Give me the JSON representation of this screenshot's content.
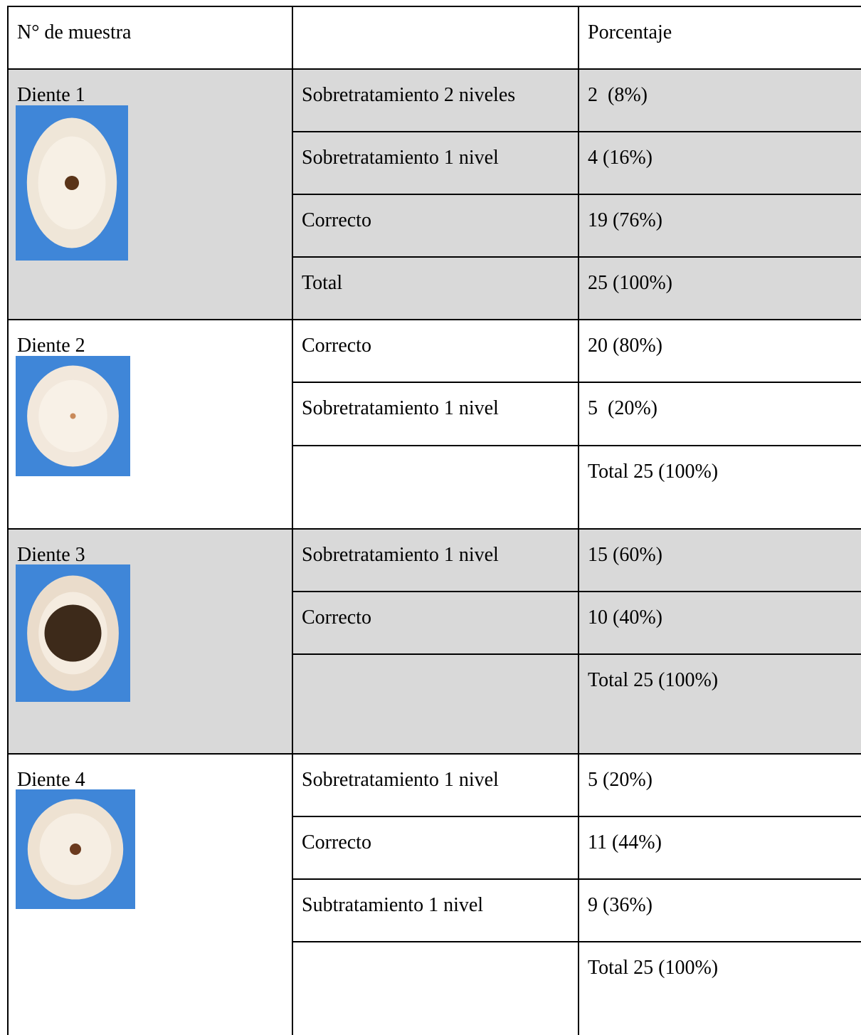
{
  "table": {
    "header": {
      "sample": "N° de muestra",
      "percent": "Porcentaje"
    },
    "groups": [
      {
        "label": "Diente 1",
        "rows": [
          {
            "category": "Sobretratamiento 2 niveles",
            "value": "2  (8%)"
          },
          {
            "category": "Sobretratamiento 1 nivel",
            "value": "4 (16%)"
          },
          {
            "category": "Correcto",
            "value": "19 (76%)"
          },
          {
            "category": "Total",
            "value": "25 (100%)"
          }
        ]
      },
      {
        "label": "Diente 2",
        "rows": [
          {
            "category": "Correcto",
            "value": "20 (80%)"
          },
          {
            "category": "Sobretratamiento 1 nivel",
            "value": "5  (20%)"
          },
          {
            "value": "Total 25 (100%)"
          }
        ]
      },
      {
        "label": "Diente 3",
        "rows": [
          {
            "category": "Sobretratamiento 1 nivel",
            "value": "15 (60%)"
          },
          {
            "category": "Correcto",
            "value": "10 (40%)"
          },
          {
            "value": "Total 25 (100%)"
          }
        ]
      },
      {
        "label": "Diente 4",
        "rows": [
          {
            "category": "Sobretratamiento 1 nivel",
            "value": "5 (20%)"
          },
          {
            "category": "Correcto",
            "value": "11 (44%)"
          },
          {
            "category": "Subtratamiento 1 nivel",
            "value": "9 (36%)"
          },
          {
            "value": "Total 25 (100%)"
          }
        ]
      }
    ]
  }
}
